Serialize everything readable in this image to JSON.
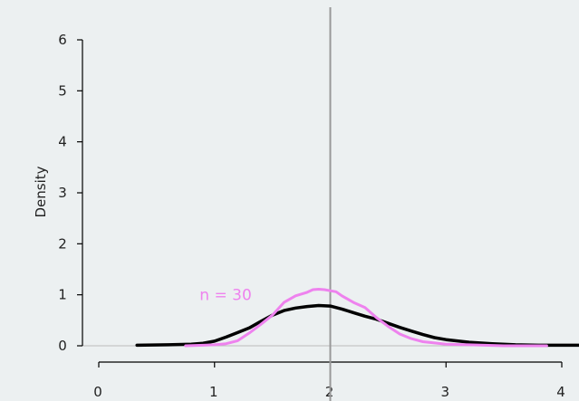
{
  "chart_data": {
    "type": "line",
    "title": "",
    "xlabel": "",
    "ylabel": "Density",
    "xlim": [
      0,
      4
    ],
    "ylim": [
      0,
      6
    ],
    "x_ticks": [
      0,
      1,
      2,
      3,
      4
    ],
    "y_ticks": [
      0,
      1,
      2,
      3,
      4,
      5,
      6
    ],
    "grid": false,
    "reference_line": {
      "x": 2,
      "color": "#999999"
    },
    "baseline": {
      "y": 0,
      "color": "#bbbbbb"
    },
    "annotation": {
      "text": "n = 30",
      "x": 1.2,
      "y": 1.0,
      "color": "#ee82ee"
    },
    "series": [
      {
        "color": "#000000",
        "x": [
          0.33,
          0.6,
          0.8,
          0.9,
          1.0,
          1.1,
          1.2,
          1.3,
          1.4,
          1.5,
          1.6,
          1.7,
          1.8,
          1.9,
          2.0,
          2.1,
          2.2,
          2.3,
          2.4,
          2.5,
          2.6,
          2.7,
          2.8,
          2.9,
          3.0,
          3.2,
          3.4,
          3.6,
          3.8,
          4.0,
          4.2
        ],
        "y": [
          0.01,
          0.02,
          0.03,
          0.05,
          0.09,
          0.17,
          0.26,
          0.35,
          0.48,
          0.6,
          0.69,
          0.74,
          0.77,
          0.79,
          0.78,
          0.72,
          0.65,
          0.58,
          0.52,
          0.44,
          0.36,
          0.29,
          0.22,
          0.16,
          0.12,
          0.07,
          0.04,
          0.02,
          0.01,
          0.01,
          0.01
        ]
      },
      {
        "color": "#ee82ee",
        "x": [
          0.75,
          0.9,
          1.0,
          1.1,
          1.2,
          1.3,
          1.4,
          1.5,
          1.6,
          1.7,
          1.8,
          1.85,
          1.9,
          1.95,
          2.0,
          2.05,
          2.1,
          2.2,
          2.3,
          2.4,
          2.5,
          2.6,
          2.7,
          2.8,
          3.0,
          3.2,
          3.5,
          3.87
        ],
        "y": [
          0.0,
          0.01,
          0.02,
          0.04,
          0.1,
          0.25,
          0.42,
          0.6,
          0.85,
          0.98,
          1.05,
          1.1,
          1.11,
          1.1,
          1.08,
          1.06,
          0.98,
          0.85,
          0.75,
          0.55,
          0.38,
          0.23,
          0.14,
          0.08,
          0.03,
          0.02,
          0.0,
          0.0
        ]
      }
    ]
  }
}
